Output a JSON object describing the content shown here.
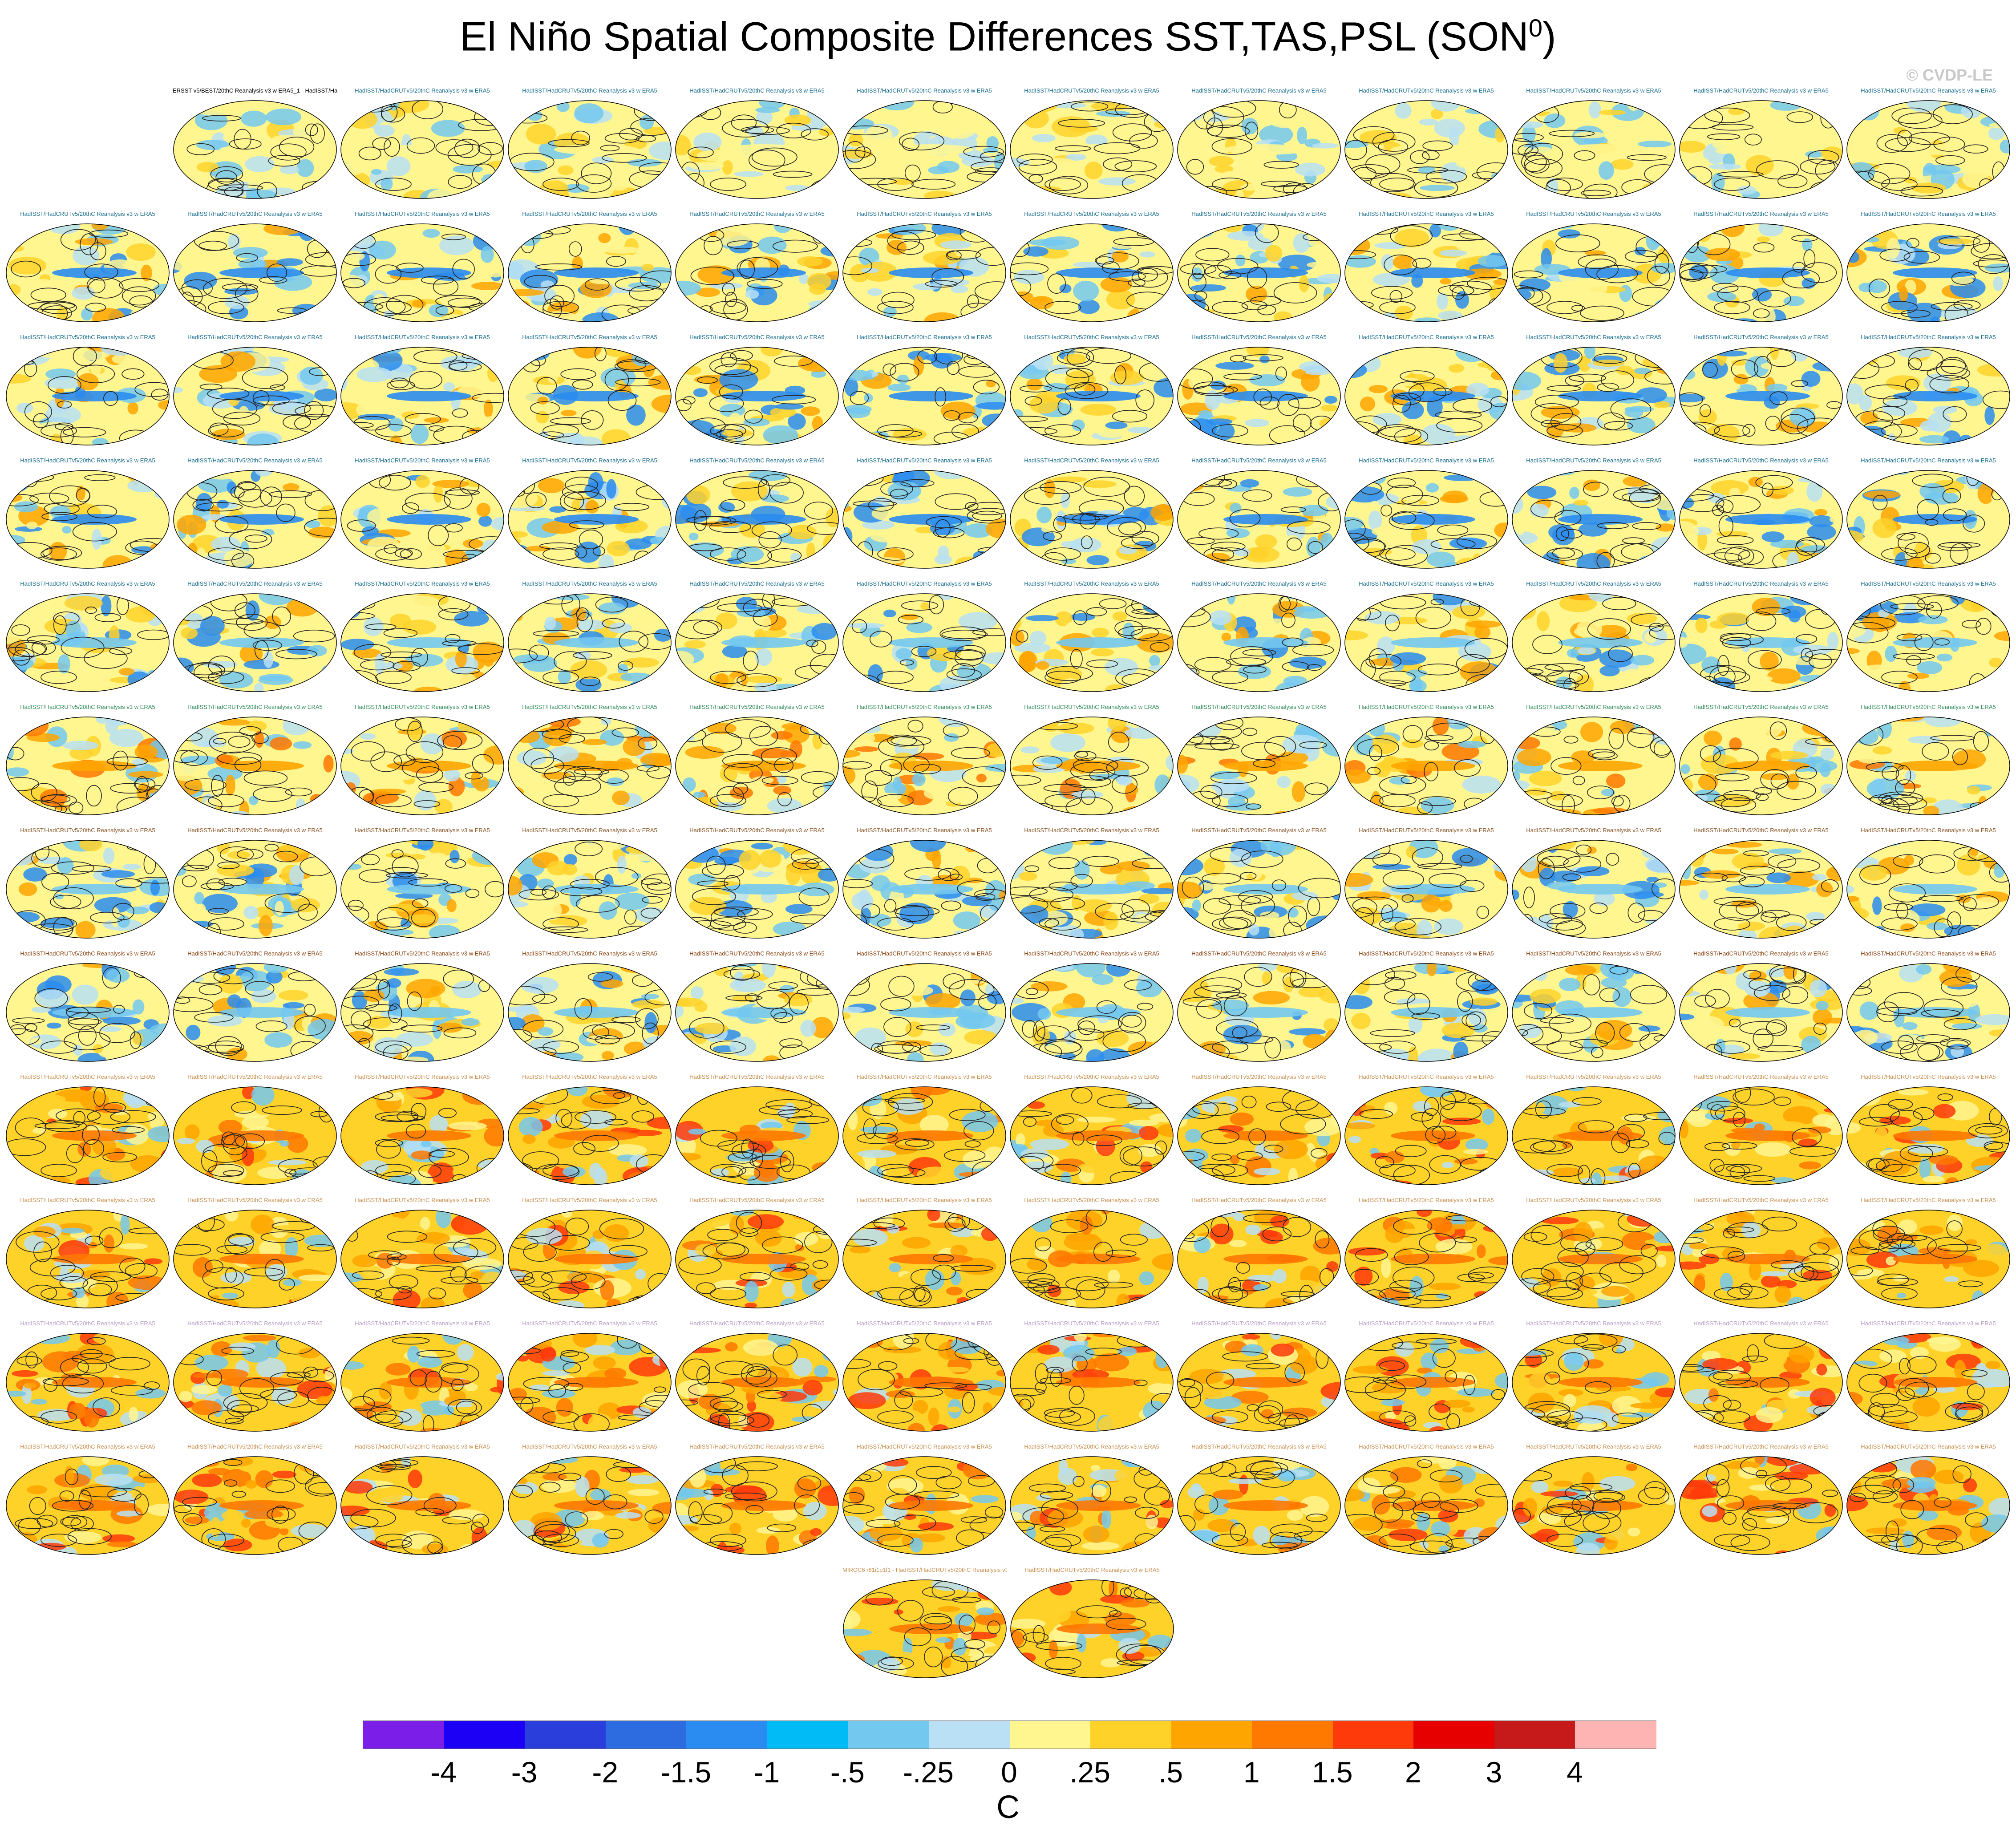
{
  "header": {
    "title": "El Niño Spatial Composite Differences SST,TAS,PSL (SON",
    "title_sup": "0",
    "title_close": ")",
    "credit": "© CVDP-LE"
  },
  "chart_data": {
    "type": "heatmap",
    "title": "El Niño Spatial Composite Differences SST,TAS,PSL (SON⁰)",
    "description_layout": "global maps, 13 rows of 12 panels with last row of 2, first row starts with observation panel",
    "rows": [
      {
        "count": 11,
        "label_color": "#1a6e8e",
        "style": "neutral"
      },
      {
        "count": 12,
        "label_color": "#1a6e8e",
        "style": "cool"
      },
      {
        "count": 12,
        "label_color": "#1a6e8e",
        "style": "cool"
      },
      {
        "count": 12,
        "label_color": "#1a6e8e",
        "style": "cool"
      },
      {
        "count": 12,
        "label_color": "#1a6e8e",
        "style": "mixed"
      },
      {
        "count": 12,
        "label_color": "#2e8b57",
        "style": "warm"
      },
      {
        "count": 12,
        "label_color": "#8b5a2b",
        "style": "mixed"
      },
      {
        "count": 12,
        "label_color": "#8b4513",
        "style": "mixed"
      },
      {
        "count": 12,
        "label_color": "#c89050",
        "style": "hot"
      },
      {
        "count": 12,
        "label_color": "#c89050",
        "style": "hot"
      },
      {
        "count": 12,
        "label_color": "#b9a0c8",
        "style": "hot"
      },
      {
        "count": 12,
        "label_color": "#c89050",
        "style": "hot"
      },
      {
        "count": 2,
        "label_color": "#c89050",
        "style": "hot"
      }
    ],
    "panel_labels": {
      "first": "ERSST v5/BEST/20thC Reanalysis v3 w ERA5_1 - HadISST/HadCRUTv5/20thC Reanalysis v3 w ERA5",
      "repeat": "HadISST/HadCRUTv5/20thC Reanalysis v3 w ERA5",
      "last_row_left": "MIROC6 r81i1p1f1 - HadISST/HadCRUTv5/20thC Reanalysis v3 w ERA5",
      "last_row_right": "HadISST/HadCRUTv5/20thC Reanalysis v3 w ERA5"
    },
    "colorbar": {
      "colors": [
        "#7b1fe8",
        "#1c00f5",
        "#2a3edc",
        "#2d6be0",
        "#2a8cf0",
        "#00bbf5",
        "#73c8f0",
        "#b9e0f5",
        "#fff690",
        "#ffd22a",
        "#ffa500",
        "#ff7800",
        "#ff3a0a",
        "#e60000",
        "#c61919",
        "#ffb4b4"
      ],
      "ticks": [
        "-4",
        "-3",
        "-2",
        "-1.5",
        "-1",
        "-.5",
        "-.25",
        "0",
        ".25",
        ".5",
        "1",
        "1.5",
        "2",
        "3",
        "4"
      ],
      "units": "C"
    }
  }
}
